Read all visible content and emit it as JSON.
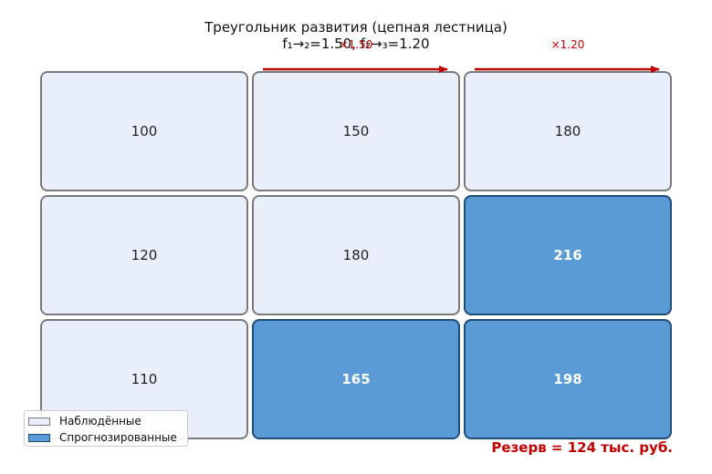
{
  "title_line1": "Треугольник развития (цепная лестница)",
  "title_line2": "f₁→₂=1.50, f₂→₃=1.20",
  "factors": [
    "×1.50",
    "×1.20"
  ],
  "rows": [
    [
      {
        "value": "100",
        "kind": "observed"
      },
      {
        "value": "150",
        "kind": "observed"
      },
      {
        "value": "180",
        "kind": "observed"
      }
    ],
    [
      {
        "value": "120",
        "kind": "observed"
      },
      {
        "value": "180",
        "kind": "observed"
      },
      {
        "value": "216",
        "kind": "projected"
      }
    ],
    [
      {
        "value": "110",
        "kind": "observed"
      },
      {
        "value": "165",
        "kind": "projected"
      },
      {
        "value": "198",
        "kind": "projected"
      }
    ]
  ],
  "legend": [
    "Наблюдённые",
    "Спрогнозированные"
  ],
  "reserve": "Резерв = 124 тыс. руб.",
  "colors": {
    "observed_fill": "#e8effb",
    "projected_fill": "#5a9bd5",
    "arrow": "#c00000"
  }
}
